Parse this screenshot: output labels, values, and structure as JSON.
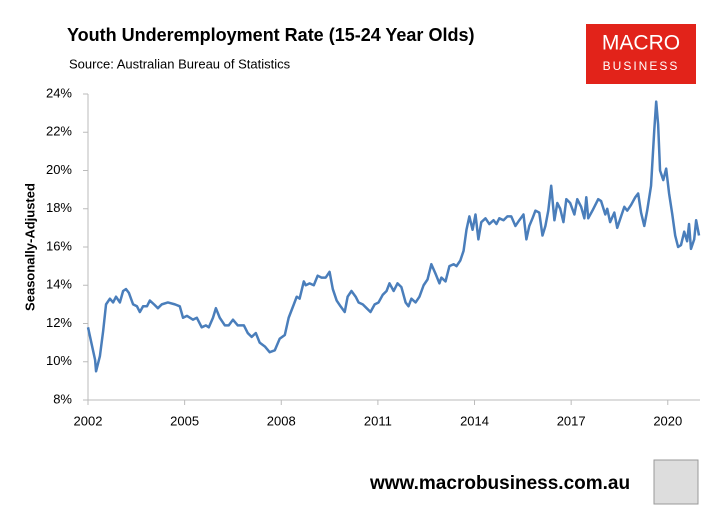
{
  "chart_data": {
    "type": "line",
    "title": "Youth Underemployment Rate (15-24 Year Olds)",
    "subtitle": "Source: Australian Bureau of Statistics",
    "y_label": "Seasonally-Adjusted",
    "color": "#4a7ebb",
    "x": [
      2002.0,
      2002.22,
      2002.25,
      2002.37,
      2002.47,
      2002.56,
      2002.68,
      2002.78,
      2002.87,
      2002.99,
      2003.09,
      2003.18,
      2003.27,
      2003.4,
      2003.52,
      2003.61,
      2003.71,
      2003.83,
      2003.92,
      2004.05,
      2004.17,
      2004.29,
      2004.48,
      2004.7,
      2004.85,
      2004.95,
      2005.07,
      2005.26,
      2005.38,
      2005.53,
      2005.66,
      2005.75,
      2005.88,
      2005.97,
      2006.09,
      2006.25,
      2006.37,
      2006.5,
      2006.65,
      2006.84,
      2006.96,
      2007.08,
      2007.21,
      2007.33,
      2007.49,
      2007.64,
      2007.8,
      2007.95,
      2008.11,
      2008.23,
      2008.39,
      2008.48,
      2008.57,
      2008.7,
      2008.76,
      2008.88,
      2009.01,
      2009.13,
      2009.25,
      2009.38,
      2009.5,
      2009.6,
      2009.72,
      2009.84,
      2009.97,
      2010.06,
      2010.18,
      2010.31,
      2010.4,
      2010.53,
      2010.65,
      2010.77,
      2010.9,
      2011.02,
      2011.15,
      2011.27,
      2011.36,
      2011.49,
      2011.61,
      2011.73,
      2011.86,
      2011.95,
      2012.04,
      2012.17,
      2012.29,
      2012.42,
      2012.54,
      2012.66,
      2012.79,
      2012.91,
      2012.97,
      2013.1,
      2013.22,
      2013.35,
      2013.44,
      2013.56,
      2013.66,
      2013.75,
      2013.84,
      2013.94,
      2014.03,
      2014.12,
      2014.21,
      2014.34,
      2014.46,
      2014.59,
      2014.68,
      2014.77,
      2014.9,
      2015.02,
      2015.14,
      2015.27,
      2015.39,
      2015.52,
      2015.61,
      2015.7,
      2015.8,
      2015.89,
      2016.01,
      2016.11,
      2016.2,
      2016.29,
      2016.38,
      2016.48,
      2016.57,
      2016.66,
      2016.76,
      2016.85,
      2016.97,
      2017.1,
      2017.19,
      2017.31,
      2017.41,
      2017.47,
      2017.53,
      2017.66,
      2017.75,
      2017.84,
      2017.93,
      2018.06,
      2018.12,
      2018.21,
      2018.34,
      2018.43,
      2018.55,
      2018.65,
      2018.74,
      2018.86,
      2018.99,
      2019.08,
      2019.17,
      2019.27,
      2019.36,
      2019.48,
      2019.58,
      2019.64,
      2019.7,
      2019.76,
      2019.86,
      2019.95,
      2020.04,
      2020.14,
      2020.23,
      2020.32,
      2020.41,
      2020.51,
      2020.6,
      2020.66,
      2020.72,
      2020.82,
      2020.88,
      2020.97
    ],
    "values": [
      11.8,
      10.1,
      9.5,
      10.3,
      11.6,
      13.0,
      13.3,
      13.1,
      13.4,
      13.1,
      13.7,
      13.8,
      13.6,
      13.0,
      12.9,
      12.6,
      12.9,
      12.9,
      13.2,
      13.0,
      12.8,
      13.0,
      13.1,
      13.0,
      12.9,
      12.3,
      12.4,
      12.2,
      12.3,
      11.8,
      11.9,
      11.8,
      12.3,
      12.8,
      12.3,
      11.9,
      11.9,
      12.2,
      11.9,
      11.9,
      11.5,
      11.3,
      11.5,
      11.0,
      10.8,
      10.5,
      10.6,
      11.2,
      11.4,
      12.3,
      13.0,
      13.4,
      13.3,
      14.2,
      14.0,
      14.1,
      14.0,
      14.5,
      14.4,
      14.4,
      14.7,
      13.8,
      13.2,
      12.9,
      12.6,
      13.4,
      13.7,
      13.4,
      13.1,
      13.0,
      12.8,
      12.6,
      13.0,
      13.1,
      13.5,
      13.7,
      14.1,
      13.7,
      14.1,
      13.9,
      13.1,
      12.9,
      13.3,
      13.1,
      13.4,
      14.0,
      14.3,
      15.1,
      14.6,
      14.1,
      14.4,
      14.2,
      15.0,
      15.1,
      15.0,
      15.3,
      15.8,
      16.9,
      17.6,
      16.9,
      17.7,
      16.4,
      17.3,
      17.5,
      17.2,
      17.4,
      17.2,
      17.5,
      17.4,
      17.6,
      17.6,
      17.1,
      17.4,
      17.7,
      16.4,
      17.1,
      17.5,
      17.9,
      17.8,
      16.6,
      17.1,
      17.9,
      19.2,
      17.4,
      18.3,
      18.0,
      17.3,
      18.5,
      18.3,
      17.7,
      18.5,
      18.1,
      17.5,
      18.6,
      17.5,
      17.9,
      18.2,
      18.5,
      18.4,
      17.7,
      18.0,
      17.3,
      17.8,
      17.0,
      17.6,
      18.1,
      17.9,
      18.2,
      18.6,
      18.8,
      17.8,
      17.1,
      17.9,
      19.2,
      22.1,
      23.6,
      22.4,
      20.0,
      19.5,
      20.1,
      18.8,
      17.7,
      16.6,
      16.0,
      16.1,
      16.8,
      16.3,
      17.2,
      15.9,
      16.4,
      17.4,
      16.6
    ],
    "xlim": [
      2002,
      2021
    ],
    "xticks": [
      2002,
      2005,
      2008,
      2011,
      2014,
      2017,
      2020
    ],
    "ylim": [
      8,
      24
    ],
    "yticks": [
      {
        "value": 8,
        "label": "8%"
      },
      {
        "value": 10,
        "label": "10%"
      },
      {
        "value": 12,
        "label": "12%"
      },
      {
        "value": 14,
        "label": "14%"
      },
      {
        "value": 16,
        "label": "16%"
      },
      {
        "value": 18,
        "label": "18%"
      },
      {
        "value": 20,
        "label": "20%"
      },
      {
        "value": 22,
        "label": "22%"
      },
      {
        "value": 24,
        "label": "24%"
      }
    ]
  },
  "logo": {
    "line1": "MACRO",
    "line2": "BUSINESS"
  },
  "footer": "www.macrobusiness.com.au"
}
